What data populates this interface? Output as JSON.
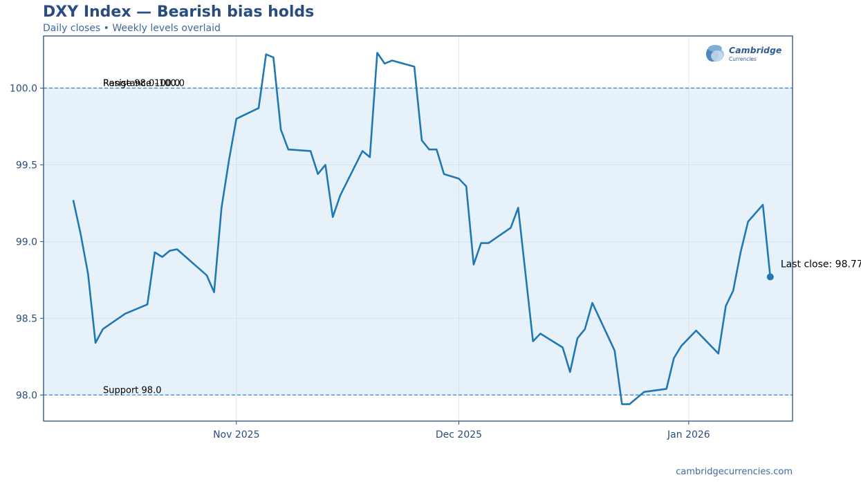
{
  "chart_data": {
    "type": "line",
    "title": "DXY Index — Bearish bias holds",
    "subtitle": "Daily closes • Weekly levels overlaid",
    "x_tick_labels": [
      {
        "date": "2025-11-01",
        "label": "Nov 2025"
      },
      {
        "date": "2025-12-01",
        "label": "Dec 2025"
      },
      {
        "date": "2026-01-01",
        "label": "Jan 2026"
      }
    ],
    "xlim": [
      "2025-10-06",
      "2026-01-15"
    ],
    "ylim": [
      97.83,
      100.34
    ],
    "y_ticks": [
      98.0,
      98.5,
      99.0,
      99.5,
      100.0
    ],
    "grid": true,
    "series": [
      {
        "color": "#1f77b4",
        "points": [
          [
            "2025-10-10",
            99.27
          ],
          [
            "2025-10-11",
            99.05
          ],
          [
            "2025-10-12",
            98.79
          ],
          [
            "2025-10-13",
            98.34
          ],
          [
            "2025-10-14",
            98.43
          ],
          [
            "2025-10-17",
            98.53
          ],
          [
            "2025-10-20",
            98.59
          ],
          [
            "2025-10-21",
            98.93
          ],
          [
            "2025-10-22",
            98.9
          ],
          [
            "2025-10-23",
            98.94
          ],
          [
            "2025-10-24",
            98.95
          ],
          [
            "2025-10-28",
            98.78
          ],
          [
            "2025-10-29",
            98.67
          ],
          [
            "2025-10-30",
            99.22
          ],
          [
            "2025-10-31",
            99.53
          ],
          [
            "2025-11-01",
            99.8
          ],
          [
            "2025-11-04",
            99.87
          ],
          [
            "2025-11-05",
            100.22
          ],
          [
            "2025-11-06",
            100.2
          ],
          [
            "2025-11-07",
            99.73
          ],
          [
            "2025-11-08",
            99.6
          ],
          [
            "2025-11-11",
            99.59
          ],
          [
            "2025-11-12",
            99.44
          ],
          [
            "2025-11-13",
            99.5
          ],
          [
            "2025-11-14",
            99.16
          ],
          [
            "2025-11-15",
            99.3
          ],
          [
            "2025-11-18",
            99.59
          ],
          [
            "2025-11-19",
            99.55
          ],
          [
            "2025-11-20",
            100.23
          ],
          [
            "2025-11-21",
            100.16
          ],
          [
            "2025-11-22",
            100.18
          ],
          [
            "2025-11-25",
            100.14
          ],
          [
            "2025-11-26",
            99.66
          ],
          [
            "2025-11-27",
            99.6
          ],
          [
            "2025-11-28",
            99.6
          ],
          [
            "2025-11-29",
            99.44
          ],
          [
            "2025-12-01",
            99.41
          ],
          [
            "2025-12-02",
            99.36
          ],
          [
            "2025-12-03",
            98.85
          ],
          [
            "2025-12-04",
            98.99
          ],
          [
            "2025-12-05",
            98.99
          ],
          [
            "2025-12-08",
            99.09
          ],
          [
            "2025-12-09",
            99.22
          ],
          [
            "2025-12-11",
            98.35
          ],
          [
            "2025-12-12",
            98.4
          ],
          [
            "2025-12-15",
            98.31
          ],
          [
            "2025-12-16",
            98.15
          ],
          [
            "2025-12-17",
            98.37
          ],
          [
            "2025-12-18",
            98.43
          ],
          [
            "2025-12-19",
            98.6
          ],
          [
            "2025-12-22",
            98.29
          ],
          [
            "2025-12-23",
            97.94
          ],
          [
            "2025-12-24",
            97.94
          ],
          [
            "2025-12-26",
            98.02
          ],
          [
            "2025-12-29",
            98.04
          ],
          [
            "2025-12-30",
            98.24
          ],
          [
            "2025-12-31",
            98.32
          ],
          [
            "2026-01-02",
            98.42
          ],
          [
            "2026-01-05",
            98.27
          ],
          [
            "2026-01-06",
            98.58
          ],
          [
            "2026-01-07",
            98.68
          ],
          [
            "2026-01-08",
            98.93
          ],
          [
            "2026-01-09",
            99.13
          ],
          [
            "2026-01-11",
            99.24
          ],
          [
            "2026-01-12",
            98.77
          ]
        ]
      }
    ],
    "reference_lines": [
      {
        "y": 100.0,
        "label": "Resistance 100.0"
      },
      {
        "y": 98.0,
        "label": "Support 98.0"
      }
    ],
    "range_band": {
      "from": 98.0,
      "to": 100.0,
      "label": "Range 98.0–100.0",
      "color": "#d6e7f5"
    },
    "last_point": {
      "date": "2026-01-12",
      "value": 98.77,
      "label": "Last close: 98.77"
    }
  },
  "logo": {
    "name": "Cambridge",
    "tagline": "Currencies",
    "icon": "currency-globe-icon"
  },
  "footer": {
    "source": "cambridgecurrencies.com"
  },
  "colors": {
    "line": "#1f77b4",
    "text": "#2a4d80",
    "axis": "#2a4d80",
    "band": "#d6e7f5",
    "reference_line": "#3a85c0"
  }
}
